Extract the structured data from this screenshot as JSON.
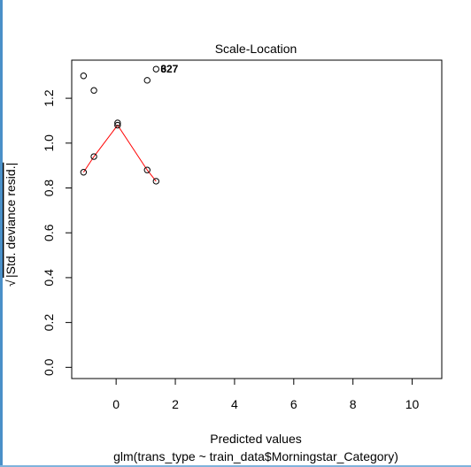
{
  "chart_data": {
    "type": "scatter",
    "title": "Scale-Location",
    "xlabel": "Predicted values",
    "subtitle": "glm(trans_type ~ train_data$Morningstar_Category)",
    "ylabel_radical": "√",
    "ylabel": "|Std. deviance resid.|",
    "xlim": [
      -1.5,
      11.0
    ],
    "ylim": [
      -0.05,
      1.37
    ],
    "x_ticks": [
      0,
      2,
      4,
      6,
      8,
      10
    ],
    "x_tick_labels": [
      "0",
      "2",
      "4",
      "6",
      "8",
      "10"
    ],
    "y_ticks": [
      0.0,
      0.2,
      0.4,
      0.6,
      0.8,
      1.0,
      1.2
    ],
    "y_tick_labels": [
      "0.0",
      "0.2",
      "0.4",
      "0.6",
      "0.8",
      "1.0",
      "1.2"
    ],
    "points": [
      {
        "x": -1.1,
        "y": 1.3
      },
      {
        "x": -0.75,
        "y": 1.235
      },
      {
        "x": 1.05,
        "y": 1.28
      },
      {
        "x": 1.35,
        "y": 1.33
      },
      {
        "x": 0.05,
        "y": 1.09
      },
      {
        "x": 0.05,
        "y": 1.08
      },
      {
        "x": -1.1,
        "y": 0.87
      },
      {
        "x": -0.75,
        "y": 0.94
      },
      {
        "x": 1.05,
        "y": 0.88
      },
      {
        "x": 1.35,
        "y": 0.83
      }
    ],
    "smooth_line": {
      "color": "#ff0000",
      "x": [
        -1.1,
        -0.75,
        0.05,
        1.05,
        1.35
      ],
      "y": [
        0.87,
        0.94,
        1.08,
        0.88,
        0.83
      ]
    },
    "annotations": [
      {
        "text": "327",
        "x": 1.5,
        "y": 1.33
      },
      {
        "text": "6",
        "x": 1.5,
        "y": 1.33
      }
    ]
  }
}
